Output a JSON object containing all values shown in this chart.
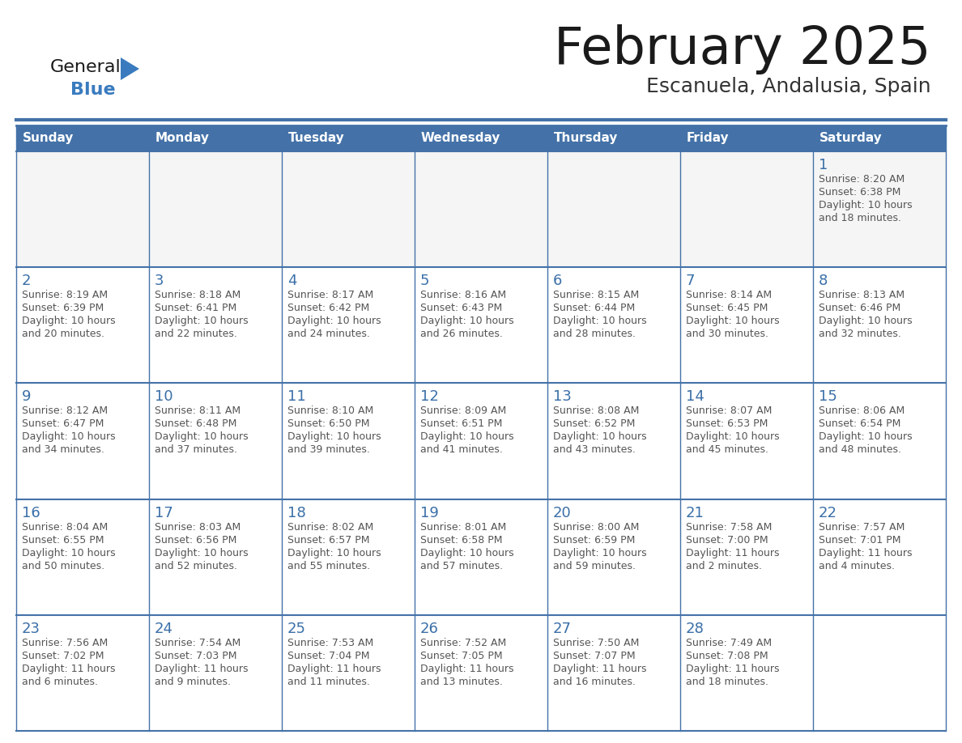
{
  "title": "February 2025",
  "subtitle": "Escanuela, Andalusia, Spain",
  "header_bg": "#4472a8",
  "header_text_color": "#ffffff",
  "cell_bg": "#ffffff",
  "cell_bg_first": "#f5f5f5",
  "day_number_color": "#3a6fa8",
  "text_color": "#555555",
  "border_color": "#4472a8",
  "separator_color": "#4472a8",
  "days_of_week": [
    "Sunday",
    "Monday",
    "Tuesday",
    "Wednesday",
    "Thursday",
    "Friday",
    "Saturday"
  ],
  "weeks": [
    [
      {
        "day": null,
        "sunrise": null,
        "sunset": null,
        "daylight": null
      },
      {
        "day": null,
        "sunrise": null,
        "sunset": null,
        "daylight": null
      },
      {
        "day": null,
        "sunrise": null,
        "sunset": null,
        "daylight": null
      },
      {
        "day": null,
        "sunrise": null,
        "sunset": null,
        "daylight": null
      },
      {
        "day": null,
        "sunrise": null,
        "sunset": null,
        "daylight": null
      },
      {
        "day": null,
        "sunrise": null,
        "sunset": null,
        "daylight": null
      },
      {
        "day": 1,
        "sunrise": "8:20 AM",
        "sunset": "6:38 PM",
        "daylight": "10 hours\nand 18 minutes."
      }
    ],
    [
      {
        "day": 2,
        "sunrise": "8:19 AM",
        "sunset": "6:39 PM",
        "daylight": "10 hours\nand 20 minutes."
      },
      {
        "day": 3,
        "sunrise": "8:18 AM",
        "sunset": "6:41 PM",
        "daylight": "10 hours\nand 22 minutes."
      },
      {
        "day": 4,
        "sunrise": "8:17 AM",
        "sunset": "6:42 PM",
        "daylight": "10 hours\nand 24 minutes."
      },
      {
        "day": 5,
        "sunrise": "8:16 AM",
        "sunset": "6:43 PM",
        "daylight": "10 hours\nand 26 minutes."
      },
      {
        "day": 6,
        "sunrise": "8:15 AM",
        "sunset": "6:44 PM",
        "daylight": "10 hours\nand 28 minutes."
      },
      {
        "day": 7,
        "sunrise": "8:14 AM",
        "sunset": "6:45 PM",
        "daylight": "10 hours\nand 30 minutes."
      },
      {
        "day": 8,
        "sunrise": "8:13 AM",
        "sunset": "6:46 PM",
        "daylight": "10 hours\nand 32 minutes."
      }
    ],
    [
      {
        "day": 9,
        "sunrise": "8:12 AM",
        "sunset": "6:47 PM",
        "daylight": "10 hours\nand 34 minutes."
      },
      {
        "day": 10,
        "sunrise": "8:11 AM",
        "sunset": "6:48 PM",
        "daylight": "10 hours\nand 37 minutes."
      },
      {
        "day": 11,
        "sunrise": "8:10 AM",
        "sunset": "6:50 PM",
        "daylight": "10 hours\nand 39 minutes."
      },
      {
        "day": 12,
        "sunrise": "8:09 AM",
        "sunset": "6:51 PM",
        "daylight": "10 hours\nand 41 minutes."
      },
      {
        "day": 13,
        "sunrise": "8:08 AM",
        "sunset": "6:52 PM",
        "daylight": "10 hours\nand 43 minutes."
      },
      {
        "day": 14,
        "sunrise": "8:07 AM",
        "sunset": "6:53 PM",
        "daylight": "10 hours\nand 45 minutes."
      },
      {
        "day": 15,
        "sunrise": "8:06 AM",
        "sunset": "6:54 PM",
        "daylight": "10 hours\nand 48 minutes."
      }
    ],
    [
      {
        "day": 16,
        "sunrise": "8:04 AM",
        "sunset": "6:55 PM",
        "daylight": "10 hours\nand 50 minutes."
      },
      {
        "day": 17,
        "sunrise": "8:03 AM",
        "sunset": "6:56 PM",
        "daylight": "10 hours\nand 52 minutes."
      },
      {
        "day": 18,
        "sunrise": "8:02 AM",
        "sunset": "6:57 PM",
        "daylight": "10 hours\nand 55 minutes."
      },
      {
        "day": 19,
        "sunrise": "8:01 AM",
        "sunset": "6:58 PM",
        "daylight": "10 hours\nand 57 minutes."
      },
      {
        "day": 20,
        "sunrise": "8:00 AM",
        "sunset": "6:59 PM",
        "daylight": "10 hours\nand 59 minutes."
      },
      {
        "day": 21,
        "sunrise": "7:58 AM",
        "sunset": "7:00 PM",
        "daylight": "11 hours\nand 2 minutes."
      },
      {
        "day": 22,
        "sunrise": "7:57 AM",
        "sunset": "7:01 PM",
        "daylight": "11 hours\nand 4 minutes."
      }
    ],
    [
      {
        "day": 23,
        "sunrise": "7:56 AM",
        "sunset": "7:02 PM",
        "daylight": "11 hours\nand 6 minutes."
      },
      {
        "day": 24,
        "sunrise": "7:54 AM",
        "sunset": "7:03 PM",
        "daylight": "11 hours\nand 9 minutes."
      },
      {
        "day": 25,
        "sunrise": "7:53 AM",
        "sunset": "7:04 PM",
        "daylight": "11 hours\nand 11 minutes."
      },
      {
        "day": 26,
        "sunrise": "7:52 AM",
        "sunset": "7:05 PM",
        "daylight": "11 hours\nand 13 minutes."
      },
      {
        "day": 27,
        "sunrise": "7:50 AM",
        "sunset": "7:07 PM",
        "daylight": "11 hours\nand 16 minutes."
      },
      {
        "day": 28,
        "sunrise": "7:49 AM",
        "sunset": "7:08 PM",
        "daylight": "11 hours\nand 18 minutes."
      },
      {
        "day": null,
        "sunrise": null,
        "sunset": null,
        "daylight": null
      }
    ]
  ],
  "logo_general_color": "#1a1a1a",
  "logo_blue_color": "#3a7bbf",
  "logo_triangle_color": "#3a7bbf",
  "title_color": "#1a1a1a",
  "subtitle_color": "#333333"
}
